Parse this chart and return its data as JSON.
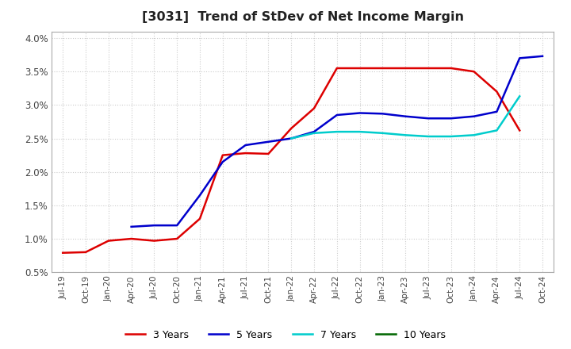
{
  "title": "[3031]  Trend of StDev of Net Income Margin",
  "title_fontsize": 11.5,
  "ylim": [
    0.005,
    0.041
  ],
  "yticks": [
    0.005,
    0.01,
    0.015,
    0.02,
    0.025,
    0.03,
    0.035,
    0.04
  ],
  "ytick_labels": [
    "0.5%",
    "1.0%",
    "1.5%",
    "2.0%",
    "2.5%",
    "3.0%",
    "3.5%",
    "4.0%"
  ],
  "background_color": "#ffffff",
  "grid_color": "#cccccc",
  "series": {
    "3 Years": {
      "color": "#dd0000",
      "values": [
        0.0079,
        0.008,
        0.0097,
        0.01,
        0.0097,
        0.01,
        0.013,
        0.0225,
        0.0228,
        0.0227,
        0.0265,
        0.0295,
        0.0355,
        0.0355,
        0.0355,
        0.0355,
        0.0355,
        0.0355,
        0.035,
        0.032,
        0.0262,
        null
      ]
    },
    "5 Years": {
      "color": "#0000cc",
      "values": [
        null,
        null,
        null,
        0.0118,
        0.012,
        0.012,
        0.0165,
        0.0215,
        0.024,
        0.0245,
        0.025,
        0.026,
        0.0285,
        0.0288,
        0.0287,
        0.0283,
        0.028,
        0.028,
        0.0283,
        0.029,
        0.037,
        0.0373
      ]
    },
    "7 Years": {
      "color": "#00cccc",
      "values": [
        null,
        null,
        null,
        null,
        null,
        null,
        null,
        null,
        null,
        null,
        0.025,
        0.0258,
        0.026,
        0.026,
        0.0258,
        0.0255,
        0.0253,
        0.0253,
        0.0255,
        0.0262,
        0.0313,
        null
      ]
    },
    "10 Years": {
      "color": "#006600",
      "values": [
        null,
        null,
        null,
        null,
        null,
        null,
        null,
        null,
        null,
        null,
        null,
        null,
        null,
        null,
        null,
        null,
        null,
        null,
        null,
        null,
        null,
        null
      ]
    }
  },
  "legend_order": [
    "3 Years",
    "5 Years",
    "7 Years",
    "10 Years"
  ],
  "xtick_labels": [
    "Jul-19",
    "Oct-19",
    "Jan-20",
    "Apr-20",
    "Jul-20",
    "Oct-20",
    "Jan-21",
    "Apr-21",
    "Jul-21",
    "Oct-21",
    "Jan-22",
    "Apr-22",
    "Jul-22",
    "Oct-22",
    "Jan-23",
    "Apr-23",
    "Jul-23",
    "Oct-23",
    "Jan-24",
    "Apr-24",
    "Jul-24",
    "Oct-24"
  ],
  "linewidth": 1.8,
  "figsize": [
    7.2,
    4.4
  ],
  "dpi": 100
}
